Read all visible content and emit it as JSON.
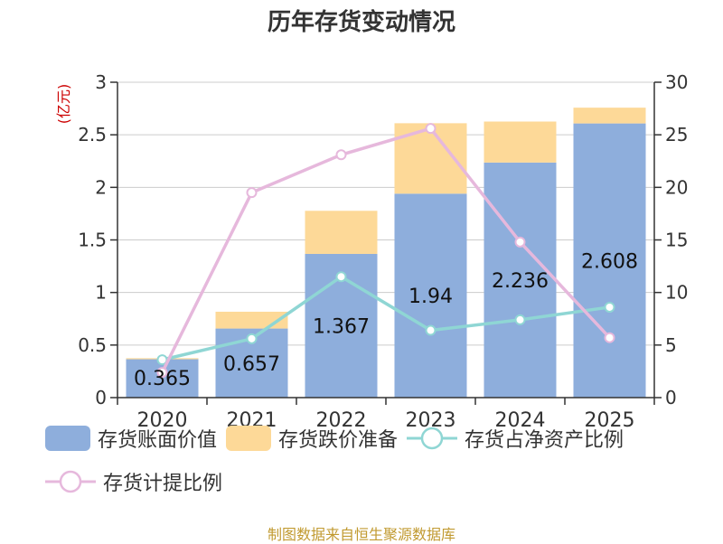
{
  "chart_data": {
    "type": "bar",
    "title": "历年存货变动情况",
    "left_axis_unit": "(亿元)",
    "categories": [
      "2020",
      "2021",
      "2022",
      "2023",
      "2024",
      "2025"
    ],
    "y_left": {
      "ylim": [
        0,
        3
      ],
      "ticks": [
        "0",
        "0.5",
        "1",
        "1.5",
        "2",
        "2.5",
        "3"
      ]
    },
    "y_right": {
      "ylim": [
        0,
        30
      ],
      "ticks": [
        "0",
        "5",
        "10",
        "15",
        "20",
        "25",
        "30"
      ]
    },
    "grid": true,
    "legend_position": "bottom",
    "series": [
      {
        "name": "存货账面价值",
        "kind": "bar",
        "axis": "left",
        "color": "#8eaedc",
        "values": [
          0.365,
          0.657,
          1.367,
          1.94,
          2.236,
          2.608
        ],
        "labels": [
          "0.365",
          "0.657",
          "1.367",
          "1.94",
          "2.236",
          "2.608"
        ]
      },
      {
        "name": "存货跌价准备",
        "kind": "bar-stacked",
        "axis": "left",
        "color": "#fdd998",
        "values": [
          0.01,
          0.16,
          0.41,
          0.67,
          0.39,
          0.15
        ]
      },
      {
        "name": "存货占净资产比例",
        "kind": "line",
        "axis": "right",
        "color": "#8fd6d4",
        "values": [
          3.6,
          5.6,
          11.5,
          6.4,
          7.4,
          8.6
        ]
      },
      {
        "name": "存货计提比例",
        "kind": "line",
        "axis": "right",
        "color": "#e6b8dc",
        "values": [
          2.4,
          19.5,
          23.1,
          25.6,
          14.8,
          5.7
        ]
      }
    ]
  },
  "legend": [
    {
      "label": "存货账面价值",
      "type": "bar",
      "color": "#8eaedc"
    },
    {
      "label": "存货跌价准备",
      "type": "bar",
      "color": "#fdd998"
    },
    {
      "label": "存货占净资产比例",
      "type": "line",
      "color": "#8fd6d4"
    },
    {
      "label": "存货计提比例",
      "type": "line",
      "color": "#e6b8dc"
    }
  ],
  "source_text": "制图数据来自恒生聚源数据库"
}
